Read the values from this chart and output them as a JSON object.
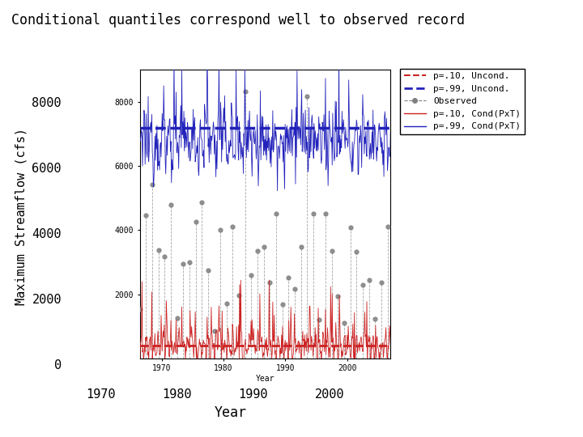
{
  "title": "Conditional quantiles correspond well to observed record",
  "xlabel": "Year",
  "ylabel": "Maximum Streamflow (cfs)",
  "xlim": [
    1966.5,
    2007
  ],
  "ylim": [
    -500,
    9500
  ],
  "inner_xlim": [
    1966.5,
    2007
  ],
  "inner_ylim": [
    0,
    9000
  ],
  "year_start": 1966,
  "year_end": 2007,
  "n_monthly": 492,
  "uncond_p10": 400,
  "uncond_p99": 7200,
  "yticks_outer": [
    0,
    2000,
    4000,
    6000,
    8000
  ],
  "xticks_outer": [
    1970,
    1980,
    1990,
    2000
  ],
  "yticks_inner": [
    2000,
    4000,
    6000,
    8000
  ],
  "background_color": "#ffffff"
}
